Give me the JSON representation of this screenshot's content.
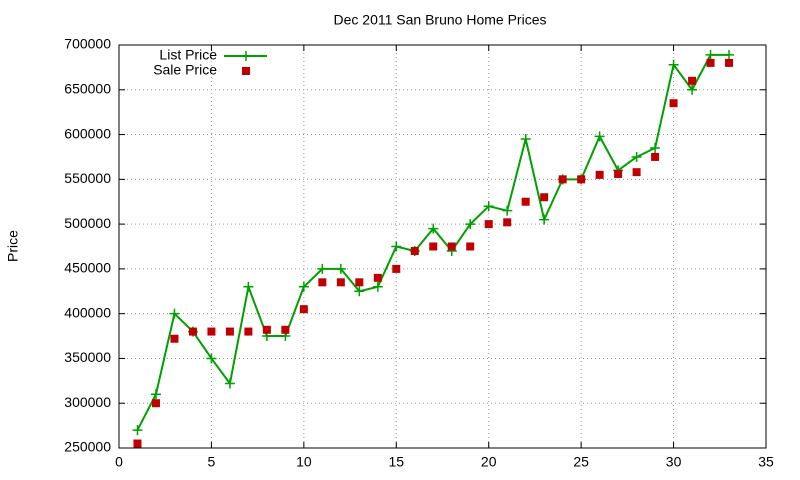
{
  "chart_data": {
    "type": "line",
    "title": "Dec 2011 San Bruno Home Prices",
    "y_label": "Price",
    "x": [
      1,
      2,
      3,
      4,
      5,
      6,
      7,
      8,
      9,
      10,
      11,
      12,
      13,
      14,
      15,
      16,
      17,
      18,
      19,
      20,
      21,
      22,
      23,
      24,
      25,
      26,
      27,
      28,
      29,
      30,
      31,
      32,
      33
    ],
    "series": [
      {
        "name": "List Price",
        "color": "#00a000",
        "style": "linespoints",
        "values": [
          270000,
          310000,
          400000,
          380000,
          350000,
          322000,
          430000,
          375000,
          375000,
          430000,
          450000,
          450000,
          425000,
          430000,
          475000,
          470000,
          495000,
          470000,
          500000,
          520000,
          515000,
          595000,
          505000,
          550000,
          550000,
          598000,
          560000,
          575000,
          585000,
          678000,
          650000,
          689000,
          689000
        ]
      },
      {
        "name": "Sale Price",
        "color": "#c00000",
        "style": "points",
        "values": [
          255000,
          300000,
          372000,
          380000,
          380000,
          380000,
          380000,
          382000,
          382000,
          405000,
          435000,
          435000,
          435000,
          440000,
          450000,
          470000,
          475000,
          475000,
          475000,
          500000,
          502000,
          525000,
          530000,
          550000,
          550000,
          555000,
          556000,
          558000,
          575000,
          635000,
          660000,
          680000,
          680000
        ]
      }
    ],
    "xlim": [
      0,
      35
    ],
    "xticks": [
      0,
      5,
      10,
      15,
      20,
      25,
      30,
      35
    ],
    "ylim": [
      250000,
      700000
    ],
    "yticks": [
      250000,
      300000,
      350000,
      400000,
      450000,
      500000,
      550000,
      600000,
      650000,
      700000
    ],
    "grid": true,
    "legend": "top-left"
  }
}
